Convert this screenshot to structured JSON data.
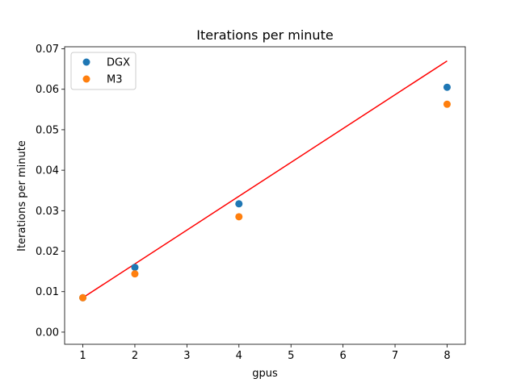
{
  "chart_data": {
    "type": "scatter",
    "title": "Iterations per minute",
    "xlabel": "gpus",
    "ylabel": "Iterations per minute",
    "xlim": [
      0.65,
      8.35
    ],
    "ylim": [
      -0.003,
      0.0705
    ],
    "xticks": [
      1,
      2,
      3,
      4,
      5,
      6,
      7,
      8
    ],
    "yticks": [
      0.0,
      0.01,
      0.02,
      0.03,
      0.04,
      0.05,
      0.06,
      0.07
    ],
    "ytick_labels": [
      "0.00",
      "0.01",
      "0.02",
      "0.03",
      "0.04",
      "0.05",
      "0.06",
      "0.07"
    ],
    "xtick_labels": [
      "1",
      "2",
      "3",
      "4",
      "5",
      "6",
      "7",
      "8"
    ],
    "legend_position": "top-left",
    "grid": false,
    "series": [
      {
        "name": "DGX",
        "type": "scatter",
        "color": "#1f77b4",
        "x": [
          1,
          2,
          4,
          8
        ],
        "y": [
          0.0085,
          0.016,
          0.0317,
          0.0605
        ]
      },
      {
        "name": "M3",
        "type": "scatter",
        "color": "#ff7f0e",
        "x": [
          1,
          2,
          4,
          8
        ],
        "y": [
          0.0085,
          0.0144,
          0.0285,
          0.0563
        ]
      }
    ],
    "fit_line": {
      "type": "line",
      "color": "#ff0000",
      "x": [
        1,
        8
      ],
      "y": [
        0.0085,
        0.067
      ]
    }
  }
}
